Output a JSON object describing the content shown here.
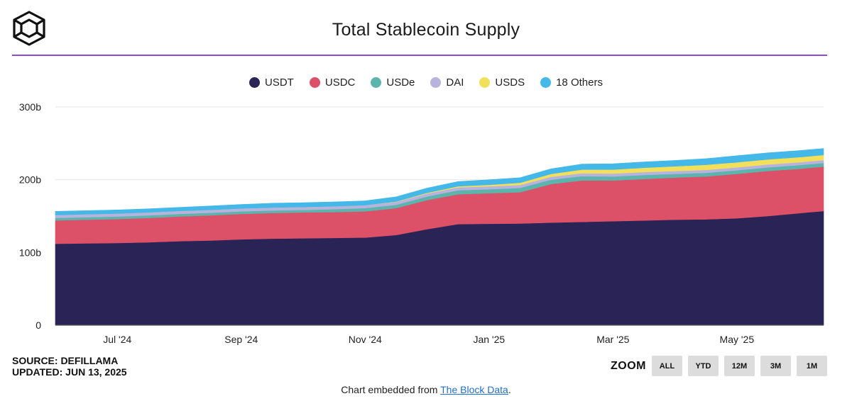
{
  "header": {
    "title": "Total Stablecoin Supply"
  },
  "colors": {
    "accent_rule": "#8e4bd6"
  },
  "chart_data": {
    "type": "area",
    "stacked": true,
    "title": "Total Stablecoin Supply",
    "x_tick_labels": [
      "Jul '24",
      "Sep '24",
      "Nov '24",
      "Jan '25",
      "Mar '25",
      "May '25"
    ],
    "x_tick_months": [
      1,
      3,
      5,
      7,
      9,
      11
    ],
    "x_range_months": [
      0,
      12.4
    ],
    "y_tick_labels": [
      "0",
      "100b",
      "200b",
      "300b"
    ],
    "y_ticks": [
      0,
      100,
      200,
      300
    ],
    "ylim": [
      0,
      300
    ],
    "grid": true,
    "legend_position": "top-center",
    "x_months": [
      0,
      0.5,
      1,
      1.5,
      2,
      2.5,
      3,
      3.5,
      4,
      4.5,
      5,
      5.5,
      6,
      6.5,
      7,
      7.5,
      8,
      8.5,
      9,
      9.5,
      10,
      10.5,
      11,
      11.5,
      12,
      12.4
    ],
    "series": [
      {
        "name": "USDT",
        "color": "#2a2456",
        "values": [
          112,
          112.5,
          113,
          114,
          115.5,
          116.5,
          118,
          119,
          119.5,
          120,
          120.5,
          124,
          132,
          139,
          139.5,
          139.8,
          141,
          142,
          143,
          144,
          145,
          145.5,
          147,
          150,
          154,
          157
        ]
      },
      {
        "name": "USDC",
        "color": "#dc5068",
        "values": [
          32,
          32.5,
          33,
          33.5,
          34,
          34.5,
          35,
          35.2,
          35.5,
          35.5,
          36,
          37,
          40,
          41,
          42,
          43,
          53,
          57,
          56,
          57,
          58,
          59,
          61,
          62,
          61,
          61
        ]
      },
      {
        "name": "USDe",
        "color": "#5bb5ac",
        "values": [
          3.5,
          3.5,
          3.5,
          3.5,
          3.5,
          3.5,
          3.5,
          3.5,
          3.5,
          4,
          4.5,
          4.5,
          5,
          5.5,
          5.5,
          6,
          6,
          6,
          5.5,
          5.5,
          5,
          5,
          5,
          5,
          5,
          5
        ]
      },
      {
        "name": "DAI",
        "color": "#b7b2de",
        "values": [
          4,
          4,
          4,
          4,
          4,
          4,
          4,
          4,
          4,
          4,
          4,
          4,
          4,
          4,
          4,
          4,
          4,
          4,
          4,
          4,
          4,
          4,
          4,
          4,
          4,
          4
        ]
      },
      {
        "name": "USDS",
        "color": "#f2e05a",
        "values": [
          0,
          0,
          0,
          0,
          0,
          0,
          0,
          0,
          0,
          0,
          0,
          0.5,
          1,
          1.5,
          2,
          3,
          4,
          5,
          5.5,
          6,
          6.5,
          7,
          7,
          7,
          7,
          7
        ]
      },
      {
        "name": "18 Others",
        "color": "#44b8e8",
        "values": [
          5,
          5,
          5,
          5,
          5,
          5.5,
          5.5,
          6,
          6,
          6,
          6,
          6.5,
          6.5,
          6.5,
          7,
          7,
          7,
          7.5,
          8,
          8,
          8,
          8.5,
          9,
          9,
          9,
          9
        ]
      }
    ]
  },
  "footer": {
    "source": "SOURCE: DEFILLAMA",
    "updated": "UPDATED: JUN 13, 2025",
    "zoom_label": "ZOOM",
    "zoom_buttons": [
      "ALL",
      "YTD",
      "12M",
      "3M",
      "1M"
    ],
    "embed_prefix": "Chart embedded from ",
    "embed_link": "The Block Data",
    "embed_suffix": "."
  }
}
